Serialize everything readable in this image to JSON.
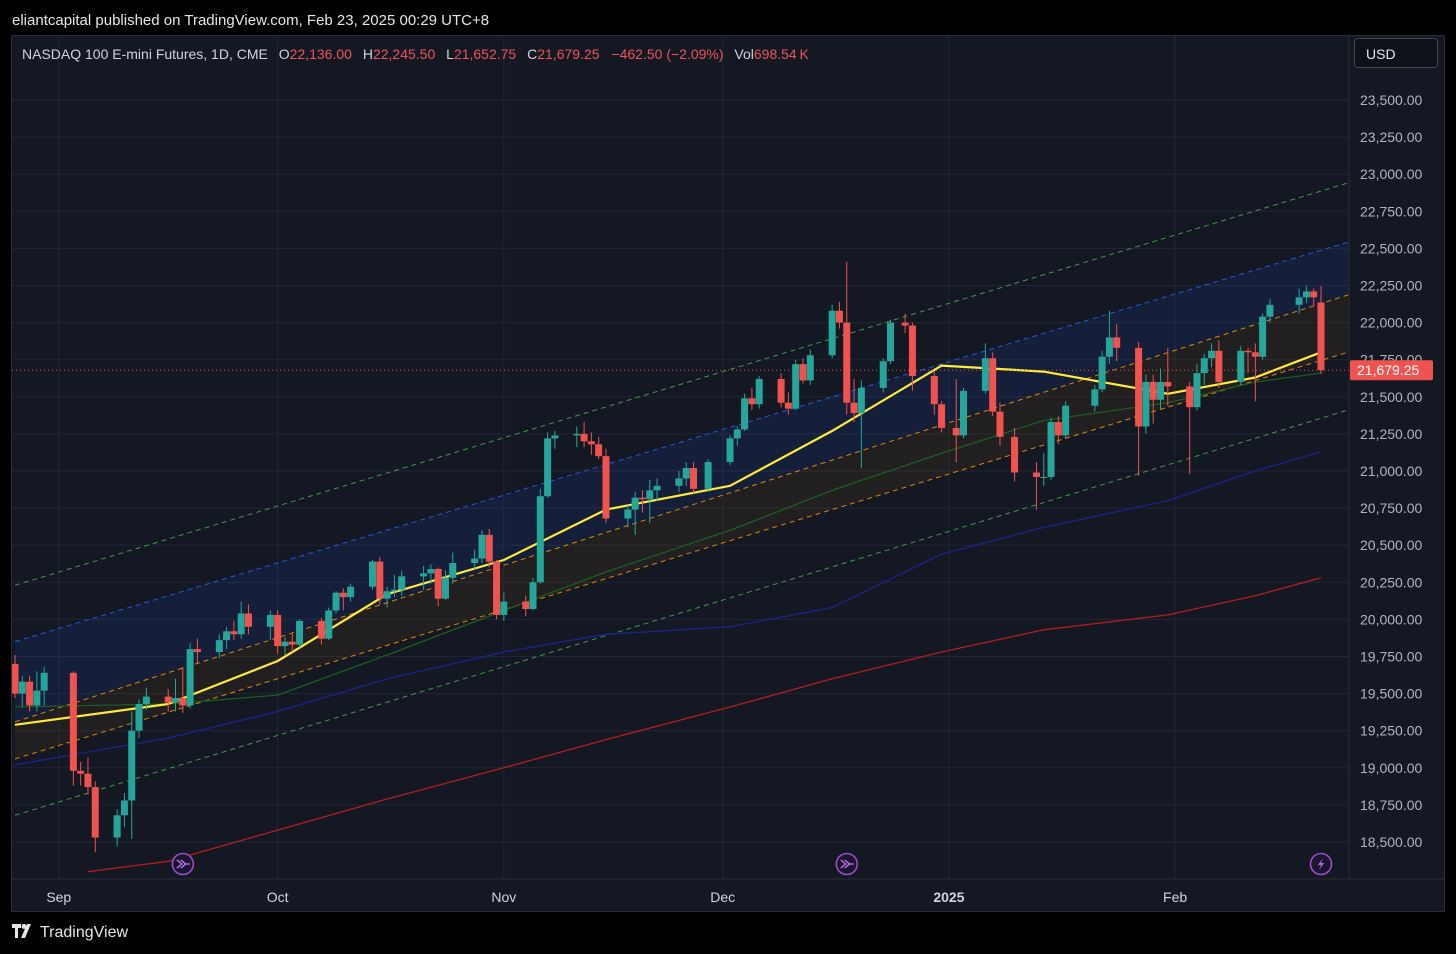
{
  "published": "eliantcapital published on TradingView.com, Feb 23, 2025 00:29 UTC+8",
  "currency_button": "USD",
  "legend": {
    "symbol": "NASDAQ 100 E-mini Futures, 1D, CME",
    "open_label": "O",
    "open": "22,136.00",
    "high_label": "H",
    "high": "22,245.50",
    "low_label": "L",
    "low": "21,652.75",
    "close_label": "C",
    "close": "21,679.25",
    "change": "−462.50 (−2.09%)",
    "vol_label": "Vol",
    "vol": "698.54 K"
  },
  "footer": {
    "brand": "TradingView",
    "logo_icon": "tradingview-logo-icon"
  },
  "colors": {
    "up": "#26a69a",
    "down": "#ef5350",
    "background": "#141823",
    "ma_short": "#ffeb3b",
    "ma_mid": "#1b5e20",
    "ma_long": "#1a237e",
    "ma_200": "#b71c1c"
  },
  "chart_data": {
    "type": "candlestick",
    "y_axis_ticks": [
      "23,500.00",
      "23,250.00",
      "23,000.00",
      "22,750.00",
      "22,500.00",
      "22,250.00",
      "22,000.00",
      "21,750.00",
      "21,500.00",
      "21,250.00",
      "21,000.00",
      "20,750.00",
      "20,500.00",
      "20,250.00",
      "20,000.00",
      "19,750.00",
      "19,500.00",
      "19,250.00",
      "19,000.00",
      "18,750.00",
      "18,500.00"
    ],
    "ylim": [
      18300,
      23750
    ],
    "x_axis_labels": [
      {
        "label": "Sep",
        "date": "2024-09-01"
      },
      {
        "label": "Oct",
        "date": "2024-10-01"
      },
      {
        "label": "Nov",
        "date": "2024-11-01"
      },
      {
        "label": "Dec",
        "date": "2024-12-01"
      },
      {
        "label": "2025",
        "date": "2025-01-01",
        "bold": true
      },
      {
        "label": "Feb",
        "date": "2025-02-01"
      }
    ],
    "last_price": {
      "value": 21679.25,
      "label": "21,679.25"
    },
    "candles": [
      [
        "2024-08-26",
        19700,
        19760,
        19470,
        19500
      ],
      [
        "2024-08-27",
        19500,
        19620,
        19410,
        19580
      ],
      [
        "2024-08-28",
        19580,
        19620,
        19380,
        19420
      ],
      [
        "2024-08-29",
        19420,
        19650,
        19380,
        19520
      ],
      [
        "2024-08-30",
        19520,
        19680,
        19420,
        19640
      ],
      [
        "2024-09-03",
        19640,
        19650,
        18880,
        18980
      ],
      [
        "2024-09-04",
        18980,
        19040,
        18880,
        18960
      ],
      [
        "2024-09-05",
        18960,
        19070,
        18820,
        18870
      ],
      [
        "2024-09-06",
        18870,
        18910,
        18430,
        18530
      ],
      [
        "2024-09-09",
        18530,
        18720,
        18470,
        18680
      ],
      [
        "2024-09-10",
        18680,
        18830,
        18600,
        18780
      ],
      [
        "2024-09-11",
        18780,
        19380,
        18520,
        19250
      ],
      [
        "2024-09-12",
        19250,
        19460,
        19200,
        19430
      ],
      [
        "2024-09-13",
        19430,
        19540,
        19390,
        19480
      ],
      [
        "2024-09-16",
        19480,
        19530,
        19380,
        19440
      ],
      [
        "2024-09-17",
        19440,
        19600,
        19380,
        19470
      ],
      [
        "2024-09-18",
        19470,
        19680,
        19370,
        19420
      ],
      [
        "2024-09-19",
        19420,
        19840,
        19400,
        19800
      ],
      [
        "2024-09-20",
        19800,
        19870,
        19700,
        19780
      ],
      [
        "2024-09-23",
        19780,
        19900,
        19740,
        19860
      ],
      [
        "2024-09-24",
        19860,
        19950,
        19800,
        19920
      ],
      [
        "2024-09-25",
        19920,
        19990,
        19860,
        19900
      ],
      [
        "2024-09-26",
        19900,
        20120,
        19870,
        20040
      ],
      [
        "2024-09-27",
        20040,
        20100,
        19900,
        19950
      ],
      [
        "2024-09-30",
        19950,
        20060,
        19860,
        20030
      ],
      [
        "2024-10-01",
        20030,
        20060,
        19770,
        19820
      ],
      [
        "2024-10-02",
        19820,
        19880,
        19760,
        19850
      ],
      [
        "2024-10-03",
        19850,
        19910,
        19780,
        19830
      ],
      [
        "2024-10-04",
        19830,
        20000,
        19810,
        19990
      ],
      [
        "2024-10-07",
        19990,
        20010,
        19830,
        19870
      ],
      [
        "2024-10-08",
        19870,
        20080,
        19860,
        20060
      ],
      [
        "2024-10-09",
        20060,
        20190,
        20040,
        20180
      ],
      [
        "2024-10-10",
        20180,
        20210,
        20060,
        20150
      ],
      [
        "2024-10-11",
        20150,
        20240,
        20120,
        20220
      ],
      [
        "2024-10-14",
        20220,
        20400,
        20200,
        20390
      ],
      [
        "2024-10-15",
        20390,
        20420,
        20100,
        20140
      ],
      [
        "2024-10-16",
        20140,
        20220,
        20080,
        20190
      ],
      [
        "2024-10-17",
        20190,
        20300,
        20150,
        20200
      ],
      [
        "2024-10-18",
        20200,
        20330,
        20160,
        20290
      ],
      [
        "2024-10-21",
        20290,
        20360,
        20200,
        20310
      ],
      [
        "2024-10-22",
        20310,
        20370,
        20240,
        20340
      ],
      [
        "2024-10-23",
        20340,
        20350,
        20090,
        20140
      ],
      [
        "2024-10-24",
        20140,
        20330,
        20130,
        20280
      ],
      [
        "2024-10-25",
        20280,
        20450,
        20240,
        20380
      ],
      [
        "2024-10-28",
        20380,
        20470,
        20340,
        20410
      ],
      [
        "2024-10-29",
        20410,
        20600,
        20380,
        20570
      ],
      [
        "2024-10-30",
        20570,
        20610,
        20350,
        20390
      ],
      [
        "2024-10-31",
        20390,
        20400,
        20000,
        20030
      ],
      [
        "2024-11-01",
        20030,
        20180,
        19990,
        20120
      ],
      [
        "2024-11-04",
        20120,
        20160,
        20020,
        20070
      ],
      [
        "2024-11-05",
        20070,
        20280,
        20060,
        20250
      ],
      [
        "2024-11-06",
        20250,
        20880,
        20240,
        20830
      ],
      [
        "2024-11-07",
        20830,
        21260,
        20820,
        21220
      ],
      [
        "2024-11-08",
        21220,
        21270,
        21150,
        21240
      ],
      [
        "2024-11-11",
        21240,
        21300,
        21160,
        21250
      ],
      [
        "2024-11-12",
        21250,
        21330,
        21160,
        21200
      ],
      [
        "2024-11-13",
        21200,
        21260,
        21110,
        21180
      ],
      [
        "2024-11-14",
        21180,
        21230,
        21080,
        21100
      ],
      [
        "2024-11-15",
        21100,
        21150,
        20650,
        20680
      ],
      [
        "2024-11-18",
        20680,
        20770,
        20620,
        20740
      ],
      [
        "2024-11-19",
        20740,
        20860,
        20570,
        20820
      ],
      [
        "2024-11-20",
        20820,
        20870,
        20720,
        20810
      ],
      [
        "2024-11-21",
        20810,
        20940,
        20650,
        20870
      ],
      [
        "2024-11-22",
        20870,
        20950,
        20800,
        20900
      ],
      [
        "2024-11-25",
        20900,
        21000,
        20860,
        20950
      ],
      [
        "2024-11-26",
        20950,
        21060,
        20900,
        21020
      ],
      [
        "2024-11-27",
        21020,
        21060,
        20850,
        20880
      ],
      [
        "2024-11-29",
        20880,
        21080,
        20860,
        21060
      ],
      [
        "2024-12-02",
        21060,
        21240,
        21040,
        21220
      ],
      [
        "2024-12-03",
        21220,
        21300,
        21170,
        21280
      ],
      [
        "2024-12-04",
        21280,
        21520,
        21270,
        21490
      ],
      [
        "2024-12-05",
        21490,
        21560,
        21410,
        21450
      ],
      [
        "2024-12-06",
        21450,
        21640,
        21420,
        21620
      ],
      [
        "2024-12-09",
        21620,
        21660,
        21430,
        21460
      ],
      [
        "2024-12-10",
        21460,
        21530,
        21380,
        21420
      ],
      [
        "2024-12-11",
        21420,
        21750,
        21410,
        21720
      ],
      [
        "2024-12-12",
        21720,
        21760,
        21590,
        21610
      ],
      [
        "2024-12-13",
        21610,
        21820,
        21580,
        21780
      ],
      [
        "2024-12-16",
        21780,
        22120,
        21760,
        22080
      ],
      [
        "2024-12-17",
        22080,
        22140,
        21960,
        22000
      ],
      [
        "2024-12-18",
        22000,
        22410,
        21380,
        21460
      ],
      [
        "2024-12-19",
        21460,
        21620,
        21330,
        21390
      ],
      [
        "2024-12-20",
        21390,
        21610,
        21020,
        21560
      ],
      [
        "2024-12-23",
        21560,
        21760,
        21530,
        21740
      ],
      [
        "2024-12-24",
        21740,
        22020,
        21720,
        22000
      ],
      [
        "2024-12-26",
        22000,
        22060,
        21930,
        21980
      ],
      [
        "2024-12-27",
        21980,
        22000,
        21540,
        21640
      ],
      [
        "2024-12-30",
        21640,
        21670,
        21380,
        21450
      ],
      [
        "2024-12-31",
        21450,
        21470,
        21260,
        21290
      ],
      [
        "2025-01-02",
        21290,
        21620,
        21060,
        21240
      ],
      [
        "2025-01-03",
        21240,
        21560,
        21220,
        21540
      ],
      [
        "2025-01-06",
        21540,
        21860,
        21520,
        21760
      ],
      [
        "2025-01-07",
        21760,
        21800,
        21370,
        21400
      ],
      [
        "2025-01-08",
        21400,
        21460,
        21170,
        21230
      ],
      [
        "2025-01-10",
        21230,
        21290,
        20930,
        20990
      ],
      [
        "2025-01-13",
        20990,
        21060,
        20740,
        20960
      ],
      [
        "2025-01-14",
        20960,
        21120,
        20900,
        20960
      ],
      [
        "2025-01-15",
        20960,
        21360,
        20940,
        21330
      ],
      [
        "2025-01-16",
        21330,
        21370,
        21180,
        21240
      ],
      [
        "2025-01-17",
        21240,
        21470,
        21220,
        21440
      ],
      [
        "2025-01-21",
        21440,
        21580,
        21400,
        21550
      ],
      [
        "2025-01-22",
        21550,
        21810,
        21530,
        21770
      ],
      [
        "2025-01-23",
        21770,
        22080,
        21720,
        21900
      ],
      [
        "2025-01-24",
        21900,
        21990,
        21740,
        21830
      ],
      [
        "2025-01-27",
        21830,
        21870,
        20970,
        21300
      ],
      [
        "2025-01-28",
        21300,
        21650,
        21250,
        21600
      ],
      [
        "2025-01-29",
        21600,
        21650,
        21320,
        21480
      ],
      [
        "2025-01-30",
        21480,
        21690,
        21420,
        21600
      ],
      [
        "2025-01-31",
        21600,
        21830,
        21440,
        21570
      ],
      [
        "2025-02-03",
        21570,
        21600,
        20980,
        21430
      ],
      [
        "2025-02-04",
        21430,
        21720,
        21410,
        21660
      ],
      [
        "2025-02-05",
        21660,
        21790,
        21580,
        21760
      ],
      [
        "2025-02-06",
        21760,
        21860,
        21700,
        21810
      ],
      [
        "2025-02-07",
        21810,
        21880,
        21560,
        21600
      ],
      [
        "2025-02-10",
        21600,
        21840,
        21580,
        21810
      ],
      [
        "2025-02-11",
        21810,
        21830,
        21660,
        21800
      ],
      [
        "2025-02-12",
        21800,
        21860,
        21470,
        21770
      ],
      [
        "2025-02-13",
        21770,
        22060,
        21750,
        22040
      ],
      [
        "2025-02-14",
        22040,
        22160,
        22000,
        22120
      ],
      [
        "2025-02-18",
        22120,
        22230,
        22060,
        22170
      ],
      [
        "2025-02-19",
        22170,
        22250,
        22130,
        22210
      ],
      [
        "2025-02-20",
        22210,
        22230,
        22110,
        22170
      ],
      [
        "2025-02-21",
        22136,
        22245.5,
        21652.75,
        21679.25
      ]
    ],
    "ma_short": [
      [
        "2024-08-26",
        19290
      ],
      [
        "2024-09-16",
        19430
      ],
      [
        "2024-10-01",
        19720
      ],
      [
        "2024-10-16",
        20170
      ],
      [
        "2024-11-01",
        20400
      ],
      [
        "2024-11-15",
        20740
      ],
      [
        "2024-12-02",
        20900
      ],
      [
        "2024-12-16",
        21270
      ],
      [
        "2024-12-31",
        21710
      ],
      [
        "2025-01-14",
        21670
      ],
      [
        "2025-01-31",
        21520
      ],
      [
        "2025-02-12",
        21630
      ],
      [
        "2025-02-21",
        21800
      ]
    ],
    "ma_mid": [
      [
        "2024-08-26",
        19410
      ],
      [
        "2024-09-16",
        19430
      ],
      [
        "2024-10-01",
        19490
      ],
      [
        "2024-10-16",
        19760
      ],
      [
        "2024-11-01",
        20060
      ],
      [
        "2024-11-15",
        20320
      ],
      [
        "2024-12-02",
        20600
      ],
      [
        "2024-12-16",
        20870
      ],
      [
        "2024-12-31",
        21120
      ],
      [
        "2025-01-14",
        21340
      ],
      [
        "2025-01-31",
        21460
      ],
      [
        "2025-02-12",
        21600
      ],
      [
        "2025-02-21",
        21660
      ]
    ],
    "ma_long": [
      [
        "2024-08-26",
        19020
      ],
      [
        "2024-09-16",
        19200
      ],
      [
        "2024-10-01",
        19380
      ],
      [
        "2024-10-16",
        19600
      ],
      [
        "2024-11-01",
        19780
      ],
      [
        "2024-11-15",
        19900
      ],
      [
        "2024-12-02",
        19950
      ],
      [
        "2024-12-16",
        20080
      ],
      [
        "2024-12-31",
        20440
      ],
      [
        "2025-01-14",
        20620
      ],
      [
        "2025-01-31",
        20800
      ],
      [
        "2025-02-12",
        21000
      ],
      [
        "2025-02-21",
        21130
      ]
    ],
    "ma_200": [
      [
        "2024-09-05",
        18300
      ],
      [
        "2024-09-16",
        18370
      ],
      [
        "2024-10-01",
        18580
      ],
      [
        "2024-10-16",
        18790
      ],
      [
        "2024-11-01",
        19000
      ],
      [
        "2024-11-15",
        19190
      ],
      [
        "2024-12-02",
        19410
      ],
      [
        "2024-12-16",
        19600
      ],
      [
        "2024-12-31",
        19780
      ],
      [
        "2025-01-14",
        19930
      ],
      [
        "2025-01-31",
        20030
      ],
      [
        "2025-02-12",
        20160
      ],
      [
        "2025-02-21",
        20280
      ]
    ],
    "channel": {
      "start": "2024-08-26",
      "end": "2025-03-02",
      "lines": [
        {
          "color": "#4caf50",
          "start": 20230,
          "end": 23020
        },
        {
          "color": "#2962ff",
          "start": 19850,
          "end": 22620
        },
        {
          "color": "#ff9800",
          "start": 19310,
          "end": 22270
        },
        {
          "color": "#ff9800",
          "start": 19060,
          "end": 21880
        },
        {
          "color": "#4caf50",
          "start": 18680,
          "end": 21490
        }
      ]
    },
    "event_markers": [
      {
        "date": "2024-09-18",
        "icon": "forward-arrow-icon"
      },
      {
        "date": "2024-12-18",
        "icon": "forward-arrow-icon"
      },
      {
        "date": "2025-02-21",
        "icon": "lightning-icon"
      }
    ]
  }
}
